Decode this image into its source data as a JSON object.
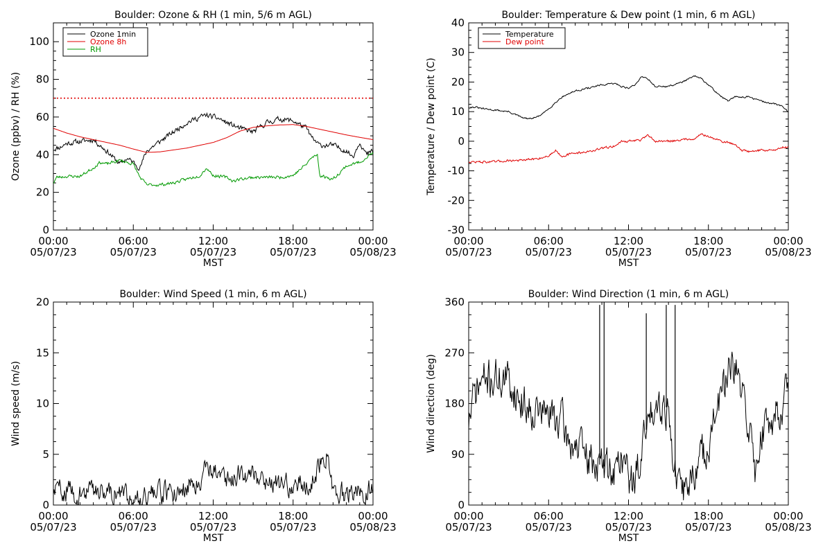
{
  "chart_data": [
    {
      "id": "ozone",
      "type": "line",
      "title": "Boulder: Ozone & RH (1 min, 5/6 m AGL)",
      "xlabel": "MST",
      "ylabel": "Ozone (ppbv) / RH (%)",
      "xlim": [
        "05/07/23 00:00",
        "05/08/23 00:00"
      ],
      "ylim": [
        0,
        110
      ],
      "yticks": [
        0,
        20,
        40,
        60,
        80,
        100
      ],
      "xtick_labels": [
        [
          "00:00",
          "05/07/23"
        ],
        [
          "06:00",
          "05/07/23"
        ],
        [
          "12:00",
          "05/07/23"
        ],
        [
          "18:00",
          "05/07/23"
        ],
        [
          "00:00",
          "05/08/23"
        ]
      ],
      "legend_position": "top-left",
      "reference_line": {
        "y": 70,
        "style": "dotted",
        "color": "#e00000"
      },
      "series": [
        {
          "name": "Ozone 1min",
          "color": "#000000",
          "noise": 1.2,
          "seed": 11,
          "x": [
            "00:00",
            "00:30",
            "01:00",
            "02:00",
            "03:00",
            "04:00",
            "05:00",
            "05:30",
            "06:00",
            "06:30",
            "07:00",
            "08:00",
            "09:00",
            "10:00",
            "11:00",
            "11:30",
            "12:00",
            "12:30",
            "13:00",
            "14:00",
            "15:00",
            "16:00",
            "17:00",
            "18:00",
            "19:00",
            "19:30",
            "20:00",
            "21:00",
            "22:00",
            "22:30",
            "23:00",
            "23:30",
            "24:00"
          ],
          "y": [
            43,
            44,
            46,
            47,
            48,
            42,
            35,
            38,
            36,
            33,
            42,
            47,
            52,
            57,
            60,
            61,
            60,
            59,
            57,
            54,
            52,
            57,
            59,
            58,
            54,
            48,
            45,
            45,
            42,
            39,
            47,
            40,
            42
          ]
        },
        {
          "name": "Ozone 8h",
          "color": "#e00000",
          "noise": 0,
          "seed": 0,
          "x": [
            "00:00",
            "01:00",
            "02:00",
            "03:00",
            "04:00",
            "05:00",
            "06:00",
            "07:00",
            "08:00",
            "09:00",
            "10:00",
            "11:00",
            "12:00",
            "13:00",
            "14:00",
            "15:00",
            "16:00",
            "17:00",
            "18:00",
            "19:00",
            "20:00",
            "21:00",
            "22:00",
            "23:00",
            "24:00"
          ],
          "y": [
            54,
            51.5,
            49.5,
            48,
            46.5,
            45,
            43,
            41.2,
            41.5,
            42.5,
            43.5,
            45,
            46.5,
            49,
            52.5,
            54.5,
            55.3,
            55.8,
            56,
            55,
            53.5,
            52,
            50.5,
            49.2,
            48
          ]
        },
        {
          "name": "RH",
          "color": "#009900",
          "noise": 0.7,
          "seed": 23,
          "x": [
            "00:00",
            "00:15",
            "01:00",
            "02:00",
            "03:00",
            "03:30",
            "04:00",
            "05:00",
            "06:00",
            "06:30",
            "07:00",
            "08:00",
            "09:00",
            "10:00",
            "11:00",
            "11:30",
            "12:00",
            "13:00",
            "13:30",
            "14:00",
            "15:00",
            "16:00",
            "17:00",
            "18:00",
            "19:00",
            "19:20",
            "19:50",
            "20:00",
            "21:00",
            "22:00",
            "23:00",
            "24:00"
          ],
          "y": [
            25,
            28,
            28.5,
            28.5,
            33,
            36,
            35,
            37,
            35,
            28,
            24,
            24,
            25,
            27,
            29,
            33,
            29,
            28,
            26,
            27,
            28,
            28,
            28,
            29,
            35,
            38,
            40,
            29,
            27,
            34,
            36,
            41
          ]
        }
      ]
    },
    {
      "id": "temp",
      "type": "line",
      "title": "Boulder: Temperature & Dew point (1 min, 6 m AGL)",
      "xlabel": "MST",
      "ylabel": "Temperature / Dew point (C)",
      "xlim": [
        "05/07/23 00:00",
        "05/08/23 00:00"
      ],
      "ylim": [
        -30,
        40
      ],
      "yticks": [
        -30,
        -20,
        -10,
        0,
        10,
        20,
        30,
        40
      ],
      "xtick_labels": [
        [
          "00:00",
          "05/07/23"
        ],
        [
          "06:00",
          "05/07/23"
        ],
        [
          "12:00",
          "05/07/23"
        ],
        [
          "18:00",
          "05/07/23"
        ],
        [
          "00:00",
          "05/08/23"
        ]
      ],
      "legend_position": "top-left",
      "series": [
        {
          "name": "Temperature",
          "color": "#000000",
          "noise": 0.25,
          "seed": 31,
          "x": [
            "00:00",
            "00:30",
            "01:00",
            "02:00",
            "03:00",
            "04:00",
            "04:30",
            "05:00",
            "05:30",
            "06:00",
            "06:30",
            "07:00",
            "08:00",
            "09:00",
            "10:00",
            "11:00",
            "11:30",
            "12:00",
            "12:30",
            "13:00",
            "13:30",
            "14:00",
            "15:00",
            "16:00",
            "17:00",
            "17:30",
            "18:00",
            "19:00",
            "19:30",
            "20:00",
            "21:00",
            "22:00",
            "23:00",
            "23:30",
            "24:00"
          ],
          "y": [
            11.5,
            11.5,
            11,
            10.5,
            10,
            8,
            7.5,
            8,
            9,
            11,
            13,
            15,
            17,
            18,
            19,
            19.5,
            18.5,
            18,
            19,
            22,
            21,
            18.5,
            18.5,
            20,
            22,
            21,
            19,
            15,
            13.5,
            15,
            15,
            13.5,
            12.5,
            12,
            10
          ]
        },
        {
          "name": "Dew point",
          "color": "#e00000",
          "noise": 0.35,
          "seed": 47,
          "x": [
            "00:00",
            "01:00",
            "02:00",
            "03:00",
            "04:00",
            "05:00",
            "06:00",
            "06:30",
            "07:00",
            "08:00",
            "09:00",
            "10:00",
            "11:00",
            "11:30",
            "12:00",
            "13:00",
            "13:30",
            "14:00",
            "15:00",
            "16:00",
            "17:00",
            "17:30",
            "18:00",
            "19:00",
            "20:00",
            "20:30",
            "21:00",
            "22:00",
            "23:00",
            "23:30",
            "24:00"
          ],
          "y": [
            -7,
            -7,
            -7,
            -6.5,
            -6.5,
            -6,
            -5,
            -3,
            -5,
            -4,
            -3.5,
            -2.5,
            -1.5,
            0,
            0,
            0.5,
            2,
            0,
            0,
            0.5,
            1,
            2.5,
            1.5,
            0,
            -1,
            -3,
            -3.5,
            -3,
            -3,
            -2,
            -2
          ]
        }
      ]
    },
    {
      "id": "wspd",
      "type": "line",
      "title": "Boulder: Wind Speed (1 min, 6 m AGL)",
      "xlabel": "MST",
      "ylabel": "Wind speed (m/s)",
      "xlim": [
        "05/07/23 00:00",
        "05/08/23 00:00"
      ],
      "ylim": [
        0,
        20
      ],
      "yticks": [
        0,
        5,
        10,
        15,
        20
      ],
      "xtick_labels": [
        [
          "00:00",
          "05/07/23"
        ],
        [
          "06:00",
          "05/07/23"
        ],
        [
          "12:00",
          "05/07/23"
        ],
        [
          "18:00",
          "05/07/23"
        ],
        [
          "00:00",
          "05/08/23"
        ]
      ],
      "series": [
        {
          "name": "",
          "color": "#000000",
          "noise": 0.9,
          "seed": 59,
          "clip_min": 0,
          "x": [
            "00:00",
            "01:00",
            "02:00",
            "03:00",
            "04:00",
            "05:00",
            "06:00",
            "07:00",
            "08:00",
            "09:00",
            "10:00",
            "11:00",
            "11:30",
            "12:00",
            "12:30",
            "13:00",
            "13:30",
            "14:00",
            "14:30",
            "15:00",
            "16:00",
            "17:00",
            "18:00",
            "19:00",
            "19:30",
            "20:00",
            "20:30",
            "21:00",
            "22:00",
            "23:00",
            "24:00"
          ],
          "y": [
            1.5,
            1.5,
            1,
            1.5,
            1.5,
            1,
            0.8,
            1,
            1.2,
            1.2,
            1.8,
            2.5,
            4,
            3.5,
            3,
            2.5,
            2.5,
            3.5,
            3,
            3,
            2.5,
            2,
            2,
            2,
            2.5,
            4,
            5,
            1.5,
            1,
            1.2,
            1.5
          ]
        }
      ]
    },
    {
      "id": "wdir",
      "type": "line",
      "title": "Boulder: Wind Direction (1 min, 6 m AGL)",
      "xlabel": "MST",
      "ylabel": "Wind direction (deg)",
      "xlim": [
        "05/07/23 00:00",
        "05/08/23 00:00"
      ],
      "ylim": [
        0,
        360
      ],
      "yticks": [
        0,
        90,
        180,
        270,
        360
      ],
      "xtick_labels": [
        [
          "00:00",
          "05/07/23"
        ],
        [
          "06:00",
          "05/07/23"
        ],
        [
          "12:00",
          "05/07/23"
        ],
        [
          "18:00",
          "05/07/23"
        ],
        [
          "00:00",
          "05/08/23"
        ]
      ],
      "series": [
        {
          "name": "",
          "color": "#000000",
          "noise": 30,
          "seed": 71,
          "clip_min": 0,
          "clip_max": 360,
          "spikes": [
            [
              "09:50",
              355
            ],
            [
              "10:10",
              360
            ],
            [
              "13:20",
              340
            ],
            [
              "14:50",
              355
            ],
            [
              "15:30",
              355
            ]
          ],
          "x": [
            "00:00",
            "00:30",
            "01:00",
            "02:00",
            "03:00",
            "04:00",
            "05:00",
            "06:00",
            "07:00",
            "07:30",
            "08:00",
            "09:00",
            "10:00",
            "11:00",
            "11:30",
            "12:00",
            "12:30",
            "13:00",
            "13:30",
            "14:00",
            "14:30",
            "15:00",
            "15:30",
            "16:00",
            "17:00",
            "18:00",
            "19:00",
            "19:30",
            "20:00",
            "21:00",
            "21:30",
            "22:00",
            "23:00",
            "24:00"
          ],
          "y": [
            150,
            200,
            220,
            225,
            220,
            180,
            170,
            160,
            150,
            110,
            110,
            80,
            70,
            60,
            90,
            50,
            40,
            100,
            150,
            190,
            180,
            170,
            50,
            20,
            60,
            110,
            200,
            230,
            240,
            150,
            60,
            130,
            160,
            200
          ]
        }
      ]
    }
  ]
}
